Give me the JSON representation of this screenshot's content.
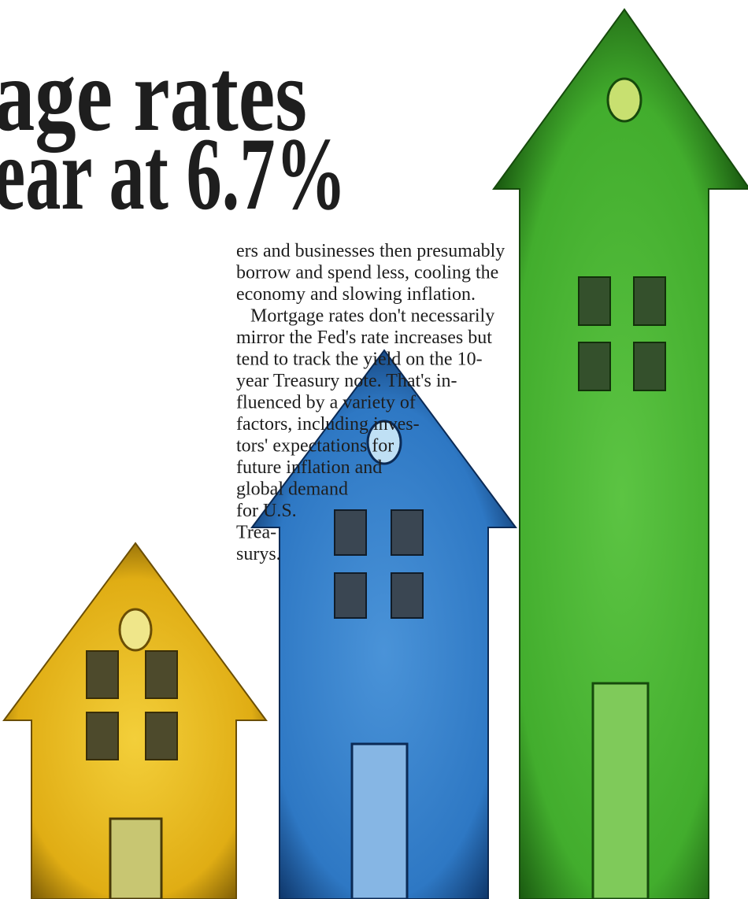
{
  "headline": {
    "lines": [
      "age rates",
      "ear at 6.7%"
    ]
  },
  "body": {
    "lines": [
      "ers and businesses then presumably",
      "borrow and spend less, cooling the",
      "economy and slowing inflation.",
      "Mortgage rates don't necessarily",
      "mirror the Fed's rate increases but",
      "tend to track the yield on the 10-",
      "year Treasury note. That's in-",
      "fluenced by a variety of",
      "factors, including inves-",
      "tors' expectations for",
      "future inflation and",
      "global demand",
      "for U.S.",
      "Trea-",
      "surys."
    ]
  }
}
